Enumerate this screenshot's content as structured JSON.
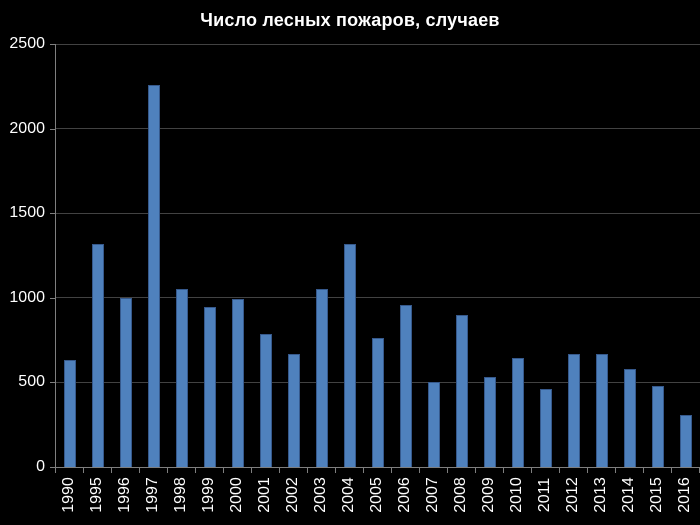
{
  "colors": {
    "background": "#000000",
    "bar_fill": "#4f81bd",
    "bar_border": "#36598c",
    "gridline": "#424242",
    "axis_line": "#7f7f7f",
    "text": "#ffffff"
  },
  "chart_data": {
    "type": "bar",
    "title": "Число лесных пожаров, случаев",
    "xlabel": "",
    "ylabel": "",
    "categories": [
      "1990",
      "1995",
      "1996",
      "1997",
      "1998",
      "1999",
      "2000",
      "2001",
      "2002",
      "2003",
      "2004",
      "2005",
      "2006",
      "2007",
      "2008",
      "2009",
      "2010",
      "2011",
      "2012",
      "2013",
      "2014",
      "2015",
      "2016"
    ],
    "values": [
      630,
      1320,
      1000,
      2260,
      1050,
      945,
      990,
      785,
      670,
      1050,
      1320,
      765,
      955,
      505,
      900,
      530,
      645,
      460,
      665,
      670,
      580,
      480,
      305
    ],
    "ylim": [
      0,
      2500
    ],
    "yticks": [
      0,
      500,
      1000,
      1500,
      2000,
      2500
    ],
    "grid": "horizontal",
    "legend_position": "none",
    "background": "black",
    "x_tick_rotation": 90
  }
}
